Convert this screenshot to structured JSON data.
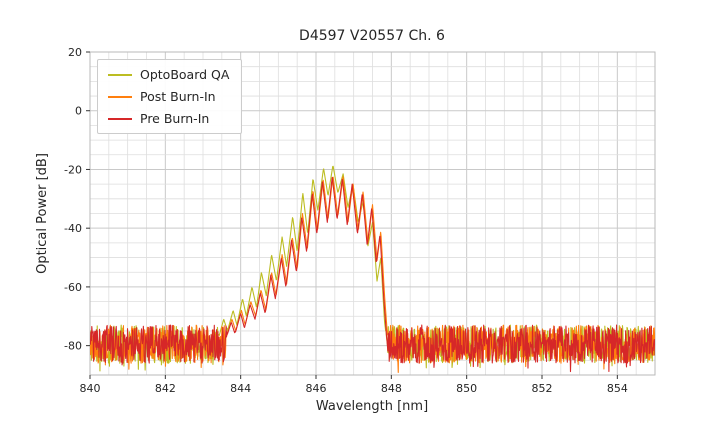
{
  "chart_data": {
    "type": "line",
    "title": "D4597 V20557 Ch. 6",
    "xlabel": "Wavelength [nm]",
    "ylabel": "Optical Power [dB]",
    "xlim": [
      840,
      855
    ],
    "ylim": [
      -90,
      20
    ],
    "x_ticks": [
      840,
      842,
      844,
      846,
      848,
      850,
      852,
      854
    ],
    "y_ticks": [
      20,
      0,
      -20,
      -40,
      -60,
      -80
    ],
    "x_minor_step": 0.5,
    "y_minor_step": 5,
    "grid": true,
    "legend_position": "upper left",
    "noise_floor": {
      "mean_db": -79.5,
      "spread_db": 6.5,
      "x_range": [
        840,
        855
      ]
    },
    "series": [
      {
        "name": "OptoBoard QA",
        "color": "#bcbd22",
        "seed": 11,
        "peak_points": [
          [
            843.4,
            -78
          ],
          [
            843.55,
            -71
          ],
          [
            843.65,
            -75
          ],
          [
            843.8,
            -68
          ],
          [
            843.9,
            -73
          ],
          [
            844.05,
            -64
          ],
          [
            844.15,
            -70
          ],
          [
            844.3,
            -60
          ],
          [
            844.42,
            -67
          ],
          [
            844.55,
            -55
          ],
          [
            844.68,
            -63
          ],
          [
            844.82,
            -49
          ],
          [
            844.95,
            -58
          ],
          [
            845.1,
            -43
          ],
          [
            845.22,
            -53
          ],
          [
            845.38,
            -36
          ],
          [
            845.5,
            -48
          ],
          [
            845.65,
            -28
          ],
          [
            845.78,
            -42
          ],
          [
            845.92,
            -23
          ],
          [
            846.05,
            -34
          ],
          [
            846.2,
            -19.5
          ],
          [
            846.32,
            -29
          ],
          [
            846.45,
            -18.5
          ],
          [
            846.58,
            -28
          ],
          [
            846.72,
            -21.5
          ],
          [
            846.85,
            -33
          ],
          [
            846.98,
            -25
          ],
          [
            847.12,
            -38
          ],
          [
            847.25,
            -31
          ],
          [
            847.38,
            -46
          ],
          [
            847.5,
            -38
          ],
          [
            847.62,
            -58
          ],
          [
            847.72,
            -50
          ],
          [
            847.82,
            -72
          ],
          [
            847.9,
            -80
          ]
        ]
      },
      {
        "name": "Post Burn-In",
        "color": "#ff7f0e",
        "seed": 22,
        "peak_points": [
          [
            843.62,
            -77
          ],
          [
            843.77,
            -71
          ],
          [
            843.87,
            -75
          ],
          [
            844.02,
            -68
          ],
          [
            844.12,
            -73
          ],
          [
            844.27,
            -65
          ],
          [
            844.4,
            -70
          ],
          [
            844.54,
            -61
          ],
          [
            844.67,
            -68
          ],
          [
            844.82,
            -55
          ],
          [
            844.94,
            -63
          ],
          [
            845.1,
            -49
          ],
          [
            845.22,
            -59
          ],
          [
            845.37,
            -43
          ],
          [
            845.5,
            -54
          ],
          [
            845.64,
            -35
          ],
          [
            845.77,
            -47
          ],
          [
            845.92,
            -27
          ],
          [
            846.04,
            -41
          ],
          [
            846.19,
            -23.5
          ],
          [
            846.32,
            -37
          ],
          [
            846.45,
            -22
          ],
          [
            846.58,
            -36
          ],
          [
            846.72,
            -22.5
          ],
          [
            846.85,
            -38
          ],
          [
            846.98,
            -24.5
          ],
          [
            847.12,
            -41
          ],
          [
            847.25,
            -27.5
          ],
          [
            847.38,
            -45
          ],
          [
            847.5,
            -32
          ],
          [
            847.62,
            -51
          ],
          [
            847.72,
            -41
          ],
          [
            847.82,
            -63
          ],
          [
            847.9,
            -77
          ]
        ]
      },
      {
        "name": "Pre Burn-In",
        "color": "#d62728",
        "seed": 33,
        "peak_points": [
          [
            843.6,
            -78
          ],
          [
            843.75,
            -72
          ],
          [
            843.85,
            -76
          ],
          [
            844.0,
            -69
          ],
          [
            844.1,
            -74
          ],
          [
            844.25,
            -66
          ],
          [
            844.38,
            -71
          ],
          [
            844.52,
            -62
          ],
          [
            844.65,
            -69
          ],
          [
            844.8,
            -56
          ],
          [
            844.92,
            -64
          ],
          [
            845.08,
            -50
          ],
          [
            845.2,
            -60
          ],
          [
            845.35,
            -44
          ],
          [
            845.48,
            -55
          ],
          [
            845.62,
            -36
          ],
          [
            845.75,
            -48
          ],
          [
            845.9,
            -28
          ],
          [
            846.02,
            -42
          ],
          [
            846.17,
            -24
          ],
          [
            846.3,
            -38
          ],
          [
            846.43,
            -22.5
          ],
          [
            846.56,
            -37
          ],
          [
            846.7,
            -23
          ],
          [
            846.83,
            -39
          ],
          [
            846.96,
            -25
          ],
          [
            847.1,
            -42
          ],
          [
            847.23,
            -28
          ],
          [
            847.36,
            -46
          ],
          [
            847.48,
            -33
          ],
          [
            847.6,
            -52
          ],
          [
            847.7,
            -42
          ],
          [
            847.8,
            -64
          ],
          [
            847.88,
            -78
          ]
        ]
      }
    ]
  }
}
